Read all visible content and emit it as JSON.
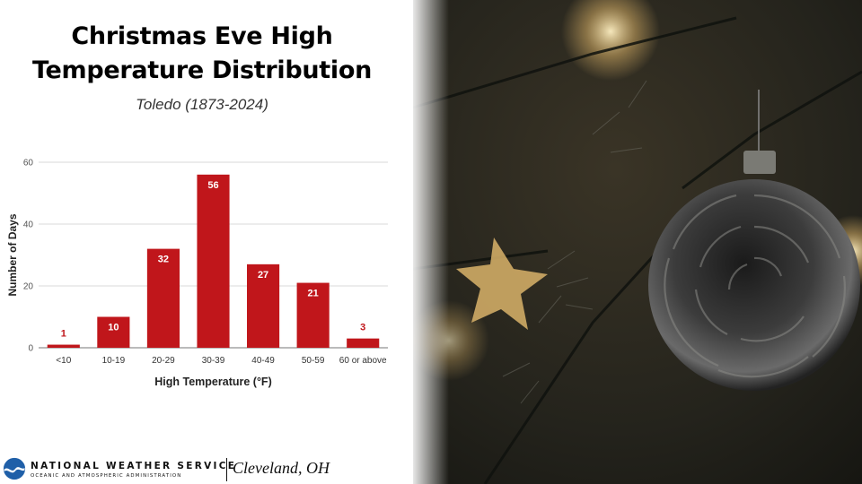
{
  "title_line1": "Christmas Eve High",
  "title_line2": "Temperature Distribution",
  "subtitle": "Toledo (1873-2024)",
  "chart_data": {
    "type": "bar",
    "categories": [
      "<10",
      "10-19",
      "20-29",
      "30-39",
      "40-49",
      "50-59",
      "60 or above"
    ],
    "values": [
      1,
      10,
      32,
      56,
      27,
      21,
      3
    ],
    "xlabel": "High Temperature (°F)",
    "ylabel": "Number of Days",
    "ylim": [
      0,
      60
    ],
    "yticks": [
      0,
      20,
      40,
      60
    ],
    "grid": true,
    "bar_color": "#c0161b",
    "label_color_inside": "#ffffff",
    "label_color_outside": "#c0161b"
  },
  "footer": {
    "agency": "NATIONAL WEATHER SERVICE",
    "agency_sub": "OCEANIC AND ATMOSPHERIC ADMINISTRATION",
    "office": "Cleveland, OH"
  },
  "photo": {
    "description_icon": "christmas-tree-ornament-photo"
  },
  "colors": {
    "brand_blue": "#1f5fa8",
    "bar_red": "#c0161b"
  }
}
